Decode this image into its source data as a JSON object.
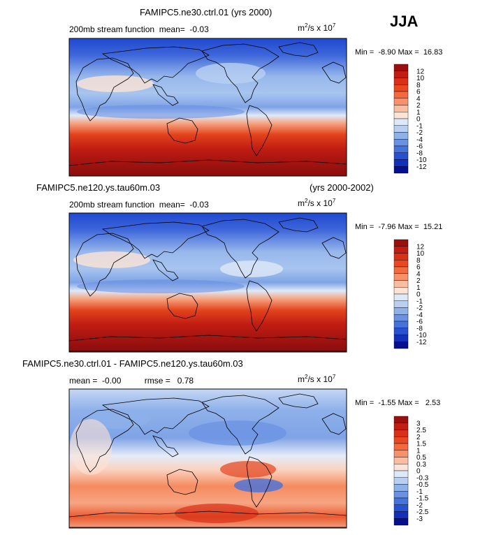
{
  "season": "JJA",
  "panels": [
    {
      "title_left": "FAMIPC5.ne30.ctrl.01 (yrs 2000)",
      "title_right": "",
      "subtitle": "200mb stream function  mean=  -0.03",
      "units_base": "m",
      "units_mid": "/s x 10",
      "units_sup1": "2",
      "units_sup2": "7",
      "minmax": "Min =  -8.90 Max =  16.83",
      "colorbar_labels": [
        "12",
        "10",
        "8",
        "6",
        "4",
        "2",
        "1",
        "0",
        "-1",
        "-2",
        "-4",
        "-6",
        "-8",
        "-10",
        "-12"
      ],
      "colorbar_colors": [
        "#9b0f0f",
        "#c21d12",
        "#d93018",
        "#ea4820",
        "#f36a3e",
        "#f8916a",
        "#fbbda2",
        "#fde3d5",
        "#dde8f8",
        "#b8cff1",
        "#8fb1ea",
        "#6a91e2",
        "#4672dc",
        "#2850cf",
        "#1331b8",
        "#06108e"
      ]
    },
    {
      "title_left": "FAMIPC5.ne120.ys.tau60m.03",
      "title_right": "(yrs 2000-2002)",
      "subtitle": "200mb stream function  mean=  -0.03",
      "units_base": "m",
      "units_mid": "/s x 10",
      "units_sup1": "2",
      "units_sup2": "7",
      "minmax": "Min =  -7.96 Max =  15.21",
      "colorbar_labels": [
        "12",
        "10",
        "8",
        "6",
        "4",
        "2",
        "1",
        "0",
        "-1",
        "-2",
        "-4",
        "-6",
        "-8",
        "-10",
        "-12"
      ],
      "colorbar_colors": [
        "#9b0f0f",
        "#c21d12",
        "#d93018",
        "#ea4820",
        "#f36a3e",
        "#f8916a",
        "#fbbda2",
        "#fde3d5",
        "#dde8f8",
        "#b8cff1",
        "#8fb1ea",
        "#6a91e2",
        "#4672dc",
        "#2850cf",
        "#1331b8",
        "#06108e"
      ]
    },
    {
      "title_left": "FAMIPC5.ne30.ctrl.01 - FAMIPC5.ne120.ys.tau60m.03",
      "title_right": "",
      "subtitle": "mean =  -0.00          rmse =   0.78",
      "units_base": "m",
      "units_mid": "/s x 10",
      "units_sup1": "2",
      "units_sup2": "7",
      "minmax": "Min =  -1.55 Max =   2.53",
      "colorbar_labels": [
        "3",
        "2.5",
        "2",
        "1.5",
        "1",
        "0.5",
        "0.3",
        "0",
        "-0.3",
        "-0.5",
        "-1",
        "-1.5",
        "-2",
        "-2.5",
        "-3"
      ],
      "colorbar_colors": [
        "#9b0f0f",
        "#c21d12",
        "#d93018",
        "#ea4820",
        "#f36a3e",
        "#f8916a",
        "#fbbda2",
        "#fde3d5",
        "#dde8f8",
        "#b8cff1",
        "#8fb1ea",
        "#6a91e2",
        "#4672dc",
        "#2850cf",
        "#1331b8",
        "#06108e"
      ]
    }
  ]
}
